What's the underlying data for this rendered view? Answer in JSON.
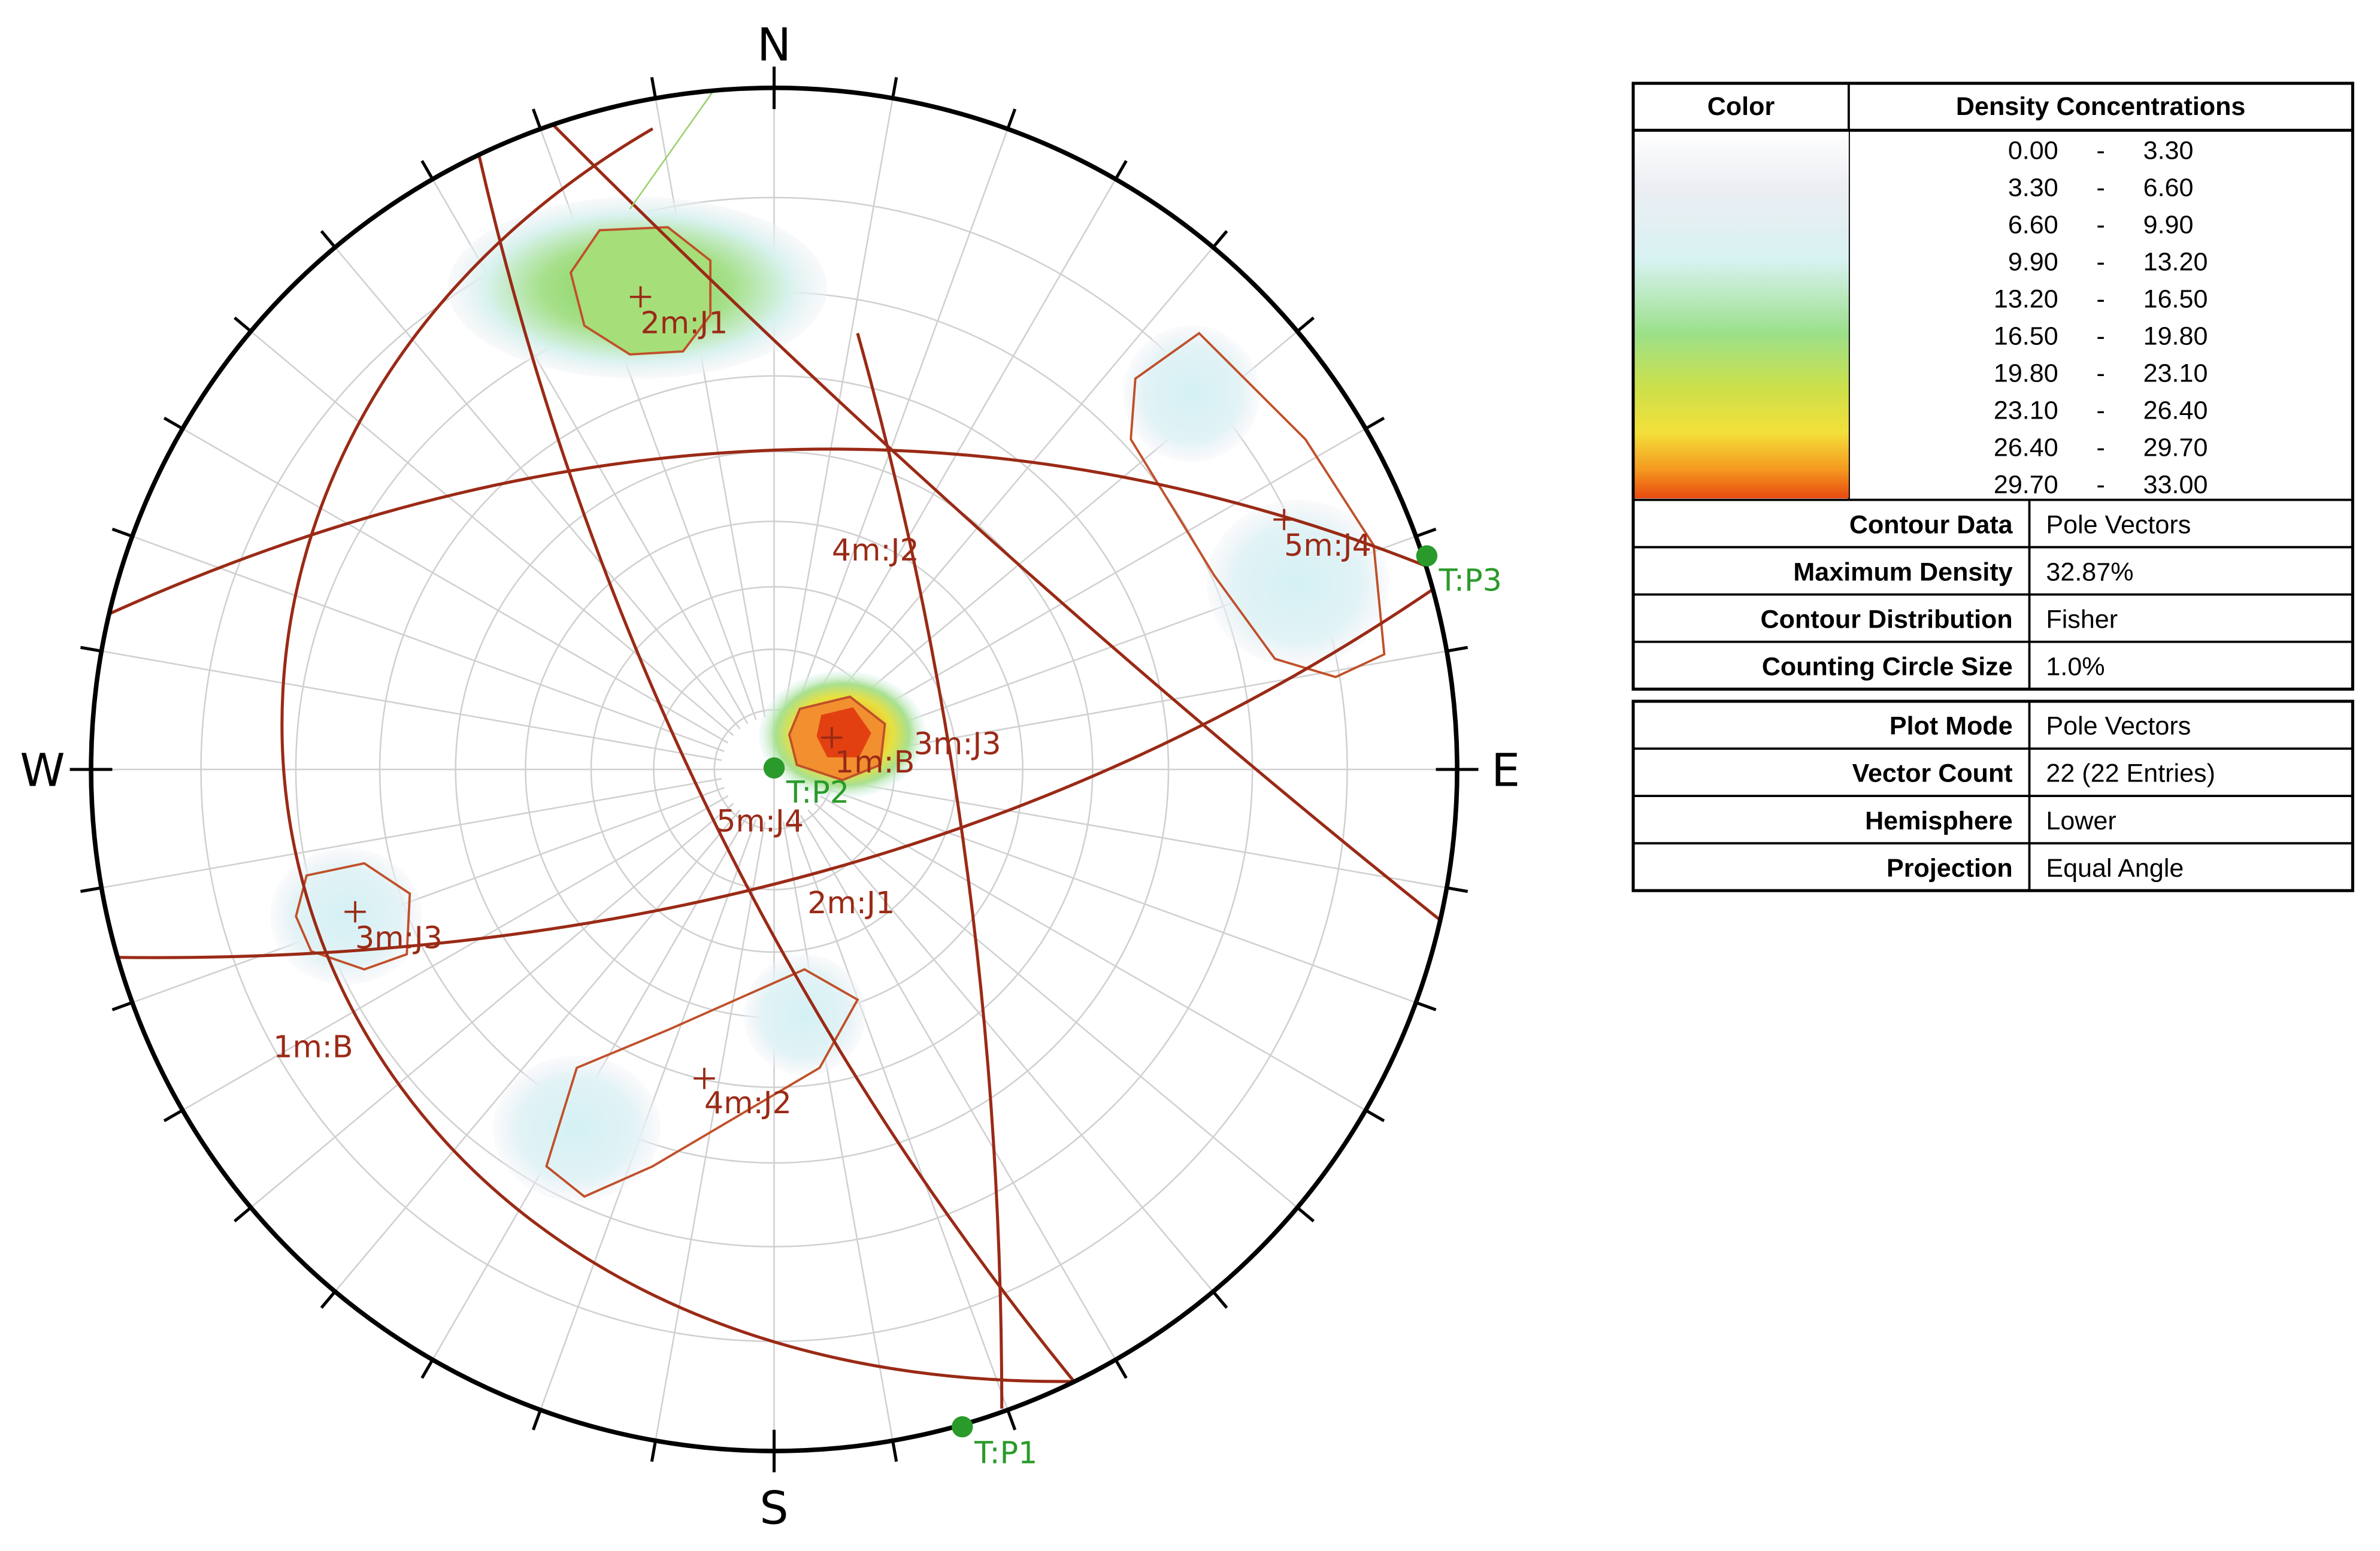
{
  "compass": {
    "north": "N",
    "south": "S",
    "east": "E",
    "west": "W"
  },
  "plot_labels": [
    "2m:J1",
    "4m:J2",
    "5m:J4",
    "T:P3",
    "3m:J3",
    "1m:B",
    "T:P2",
    "5m:J4",
    "2m:J1",
    "3m:J3",
    "1m:B",
    "4m:J2",
    "T:P1"
  ],
  "legend": {
    "header": [
      "Color",
      "Density Concentrations"
    ],
    "ranges": [
      [
        "0.00",
        "-",
        "3.30"
      ],
      [
        "3.30",
        "-",
        "6.60"
      ],
      [
        "6.60",
        "-",
        "9.90"
      ],
      [
        "9.90",
        "-",
        "13.20"
      ],
      [
        "13.20",
        "-",
        "16.50"
      ],
      [
        "16.50",
        "-",
        "19.80"
      ],
      [
        "19.80",
        "-",
        "23.10"
      ],
      [
        "23.10",
        "-",
        "26.40"
      ],
      [
        "26.40",
        "-",
        "29.70"
      ],
      [
        "29.70",
        "-",
        "33.00"
      ]
    ],
    "contour_info": [
      [
        "Contour Data",
        "Pole Vectors"
      ],
      [
        "Maximum Density",
        "32.87%"
      ],
      [
        "Contour Distribution",
        "Fisher"
      ],
      [
        "Counting Circle Size",
        "1.0%"
      ]
    ],
    "plot_info": [
      [
        "Plot Mode",
        "Pole Vectors"
      ],
      [
        "Vector Count",
        "22 (22 Entries)"
      ],
      [
        "Hemisphere",
        "Lower"
      ],
      [
        "Projection",
        "Equal Angle"
      ]
    ]
  }
}
